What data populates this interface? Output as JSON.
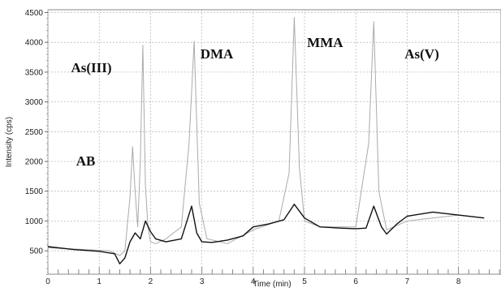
{
  "chart_data": {
    "type": "line",
    "title": "",
    "xlabel": "Time (min)",
    "ylabel": "Intensity (cps)",
    "xlim": [
      0,
      9
    ],
    "ylim": [
      0,
      4500
    ],
    "x_ticks": [
      "0",
      "1",
      "2",
      "3",
      "4",
      "5",
      "6",
      "7",
      "8"
    ],
    "y_ticks": [
      "500",
      "1000",
      "1500",
      "2000",
      "2500",
      "3000",
      "3500",
      "4000",
      "4500"
    ],
    "grid": true,
    "legend": "none",
    "annotations": [
      {
        "text": "As(III)",
        "x": 0.45,
        "y": 3500
      },
      {
        "text": "DMA",
        "x": 2.97,
        "y": 3730
      },
      {
        "text": "MMA",
        "x": 5.05,
        "y": 3920
      },
      {
        "text": "As(V)",
        "x": 6.95,
        "y": 3730
      },
      {
        "text": "AB",
        "x": 0.55,
        "y": 1930
      }
    ],
    "series": [
      {
        "name": "",
        "color": "#aaaaaa",
        "x": [
          0.0,
          1.2,
          1.4,
          1.5,
          1.6,
          1.65,
          1.7,
          1.75,
          1.8,
          1.85,
          1.9,
          1.95,
          2.0,
          2.1,
          2.3,
          2.6,
          2.75,
          2.85,
          2.95,
          3.1,
          3.5,
          4.0,
          4.5,
          4.7,
          4.8,
          4.9,
          5.0,
          5.3,
          6.0,
          6.25,
          6.35,
          6.45,
          6.6,
          7.0,
          8.0,
          8.5
        ],
        "y": [
          550,
          500,
          420,
          500,
          1400,
          2250,
          1500,
          900,
          2000,
          3950,
          1600,
          900,
          650,
          620,
          700,
          900,
          2300,
          4020,
          1300,
          700,
          620,
          850,
          1000,
          1800,
          4420,
          1900,
          1000,
          900,
          900,
          2300,
          4350,
          1500,
          850,
          1000,
          1100,
          1050
        ]
      },
      {
        "name": "",
        "color": "#111111",
        "x": [
          0.0,
          0.5,
          1.0,
          1.3,
          1.4,
          1.5,
          1.6,
          1.7,
          1.8,
          1.9,
          2.0,
          2.1,
          2.3,
          2.6,
          2.8,
          2.9,
          3.0,
          3.2,
          3.5,
          3.8,
          4.0,
          4.3,
          4.6,
          4.8,
          5.0,
          5.3,
          5.7,
          6.0,
          6.2,
          6.35,
          6.5,
          6.6,
          6.8,
          7.0,
          7.5,
          8.0,
          8.5
        ],
        "y": [
          570,
          520,
          490,
          450,
          280,
          380,
          650,
          800,
          700,
          1000,
          820,
          700,
          650,
          700,
          1250,
          800,
          650,
          640,
          680,
          750,
          900,
          950,
          1020,
          1280,
          1050,
          900,
          880,
          870,
          880,
          1250,
          900,
          780,
          950,
          1080,
          1150,
          1100,
          1050
        ]
      }
    ]
  }
}
